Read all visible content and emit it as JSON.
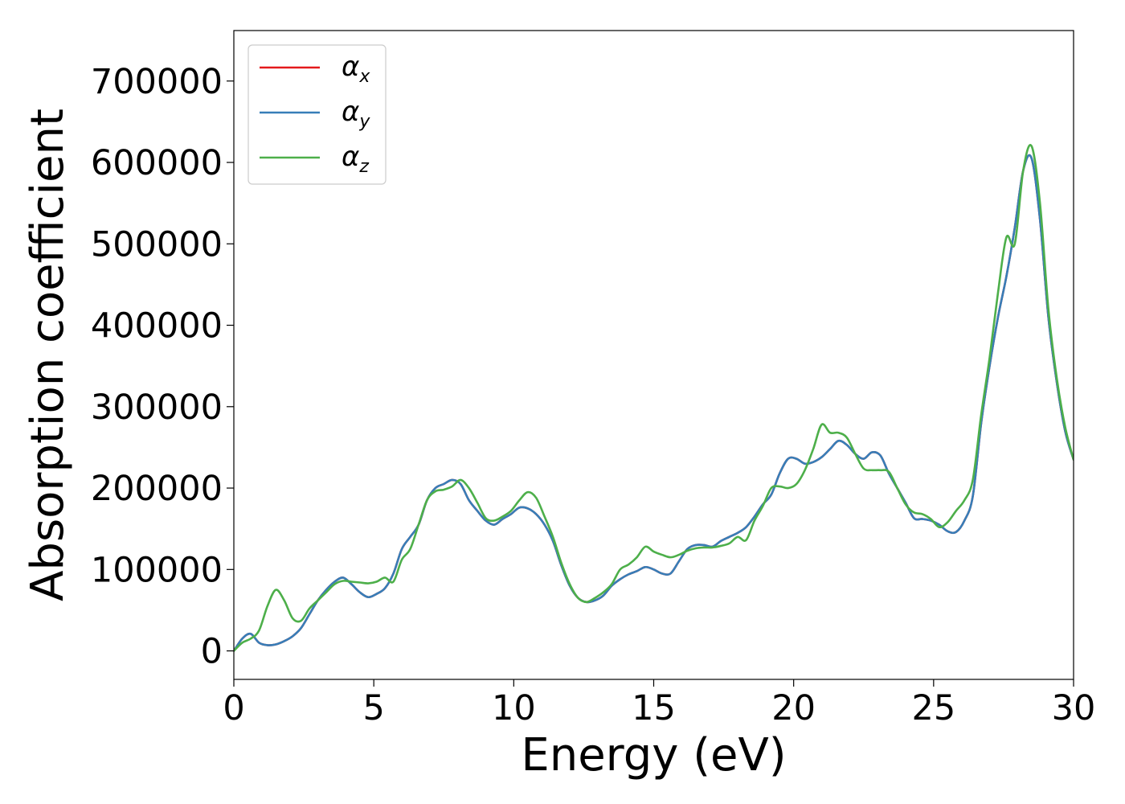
{
  "chart_data": {
    "type": "line",
    "title": "",
    "xlabel": "Energy (eV)",
    "ylabel": "Absorption coefficient",
    "xlim": [
      0,
      30
    ],
    "ylim": [
      -35000,
      762000
    ],
    "xticks": [
      0,
      5,
      10,
      15,
      20,
      25,
      30
    ],
    "xtick_labels": [
      "0",
      "5",
      "10",
      "15",
      "20",
      "25",
      "30"
    ],
    "yticks": [
      0,
      100000,
      200000,
      300000,
      400000,
      500000,
      600000,
      700000
    ],
    "ytick_labels": [
      "0",
      "100000",
      "200000",
      "300000",
      "400000",
      "500000",
      "600000",
      "700000"
    ],
    "grid": false,
    "legend_position": "top-left",
    "series": [
      {
        "name": "α",
        "sub": "x",
        "color": "#e41a1c",
        "x": [
          0,
          0.3,
          0.6,
          0.9,
          1.2,
          1.5,
          1.8,
          2.1,
          2.4,
          2.7,
          3.0,
          3.3,
          3.6,
          3.9,
          4.2,
          4.5,
          4.8,
          5.1,
          5.4,
          5.7,
          6.0,
          6.3,
          6.6,
          6.9,
          7.2,
          7.5,
          7.8,
          8.1,
          8.4,
          8.7,
          9.0,
          9.3,
          9.6,
          9.9,
          10.2,
          10.5,
          10.8,
          11.1,
          11.4,
          11.7,
          12.0,
          12.3,
          12.6,
          12.9,
          13.2,
          13.5,
          13.8,
          14.1,
          14.4,
          14.7,
          15.0,
          15.3,
          15.6,
          15.9,
          16.2,
          16.5,
          16.8,
          17.1,
          17.4,
          17.7,
          18.0,
          18.3,
          18.6,
          18.9,
          19.2,
          19.5,
          19.8,
          20.1,
          20.4,
          20.7,
          21.0,
          21.3,
          21.6,
          21.9,
          22.2,
          22.5,
          22.8,
          23.1,
          23.4,
          23.7,
          24.0,
          24.3,
          24.6,
          24.9,
          25.2,
          25.5,
          25.8,
          26.1,
          26.4,
          26.7,
          27.0,
          27.3,
          27.6,
          27.9,
          28.2,
          28.5,
          28.8,
          29.1,
          29.4,
          29.7,
          30.0
        ],
        "y": [
          0,
          15000,
          21000,
          10000,
          7000,
          8000,
          12000,
          18000,
          28000,
          45000,
          62000,
          75000,
          85000,
          90000,
          82000,
          72000,
          66000,
          70000,
          77000,
          95000,
          125000,
          140000,
          155000,
          185000,
          200000,
          205000,
          210000,
          205000,
          185000,
          172000,
          160000,
          155000,
          162000,
          168000,
          176000,
          175000,
          168000,
          155000,
          135000,
          105000,
          80000,
          65000,
          60000,
          62000,
          68000,
          80000,
          88000,
          94000,
          98000,
          103000,
          100000,
          95000,
          95000,
          110000,
          125000,
          130000,
          130000,
          128000,
          135000,
          140000,
          145000,
          152000,
          165000,
          180000,
          192000,
          218000,
          236000,
          236000,
          230000,
          232000,
          238000,
          248000,
          258000,
          253000,
          242000,
          236000,
          244000,
          240000,
          218000,
          200000,
          182000,
          163000,
          162000,
          160000,
          155000,
          147000,
          146000,
          160000,
          190000,
          280000,
          350000,
          410000,
          460000,
          520000,
          590000,
          605000,
          530000,
          410000,
          330000,
          270000,
          235000
        ]
      },
      {
        "name": "α",
        "sub": "y",
        "color": "#377eb8",
        "x": [
          0,
          0.3,
          0.6,
          0.9,
          1.2,
          1.5,
          1.8,
          2.1,
          2.4,
          2.7,
          3.0,
          3.3,
          3.6,
          3.9,
          4.2,
          4.5,
          4.8,
          5.1,
          5.4,
          5.7,
          6.0,
          6.3,
          6.6,
          6.9,
          7.2,
          7.5,
          7.8,
          8.1,
          8.4,
          8.7,
          9.0,
          9.3,
          9.6,
          9.9,
          10.2,
          10.5,
          10.8,
          11.1,
          11.4,
          11.7,
          12.0,
          12.3,
          12.6,
          12.9,
          13.2,
          13.5,
          13.8,
          14.1,
          14.4,
          14.7,
          15.0,
          15.3,
          15.6,
          15.9,
          16.2,
          16.5,
          16.8,
          17.1,
          17.4,
          17.7,
          18.0,
          18.3,
          18.6,
          18.9,
          19.2,
          19.5,
          19.8,
          20.1,
          20.4,
          20.7,
          21.0,
          21.3,
          21.6,
          21.9,
          22.2,
          22.5,
          22.8,
          23.1,
          23.4,
          23.7,
          24.0,
          24.3,
          24.6,
          24.9,
          25.2,
          25.5,
          25.8,
          26.1,
          26.4,
          26.7,
          27.0,
          27.3,
          27.6,
          27.9,
          28.2,
          28.5,
          28.8,
          29.1,
          29.4,
          29.7,
          30.0
        ],
        "y": [
          0,
          15000,
          21000,
          10000,
          7000,
          8000,
          12000,
          18000,
          28000,
          45000,
          62000,
          75000,
          85000,
          90000,
          82000,
          72000,
          66000,
          70000,
          77000,
          95000,
          125000,
          140000,
          155000,
          185000,
          200000,
          205000,
          210000,
          205000,
          185000,
          172000,
          160000,
          155000,
          162000,
          168000,
          176000,
          175000,
          168000,
          155000,
          135000,
          105000,
          80000,
          65000,
          60000,
          62000,
          68000,
          80000,
          88000,
          94000,
          98000,
          103000,
          100000,
          95000,
          95000,
          110000,
          125000,
          130000,
          130000,
          128000,
          135000,
          140000,
          145000,
          152000,
          165000,
          180000,
          192000,
          218000,
          236000,
          236000,
          230000,
          232000,
          238000,
          248000,
          258000,
          253000,
          242000,
          236000,
          244000,
          240000,
          218000,
          200000,
          182000,
          163000,
          162000,
          160000,
          155000,
          147000,
          146000,
          160000,
          190000,
          280000,
          350000,
          410000,
          460000,
          520000,
          590000,
          605000,
          530000,
          410000,
          330000,
          270000,
          235000
        ]
      },
      {
        "name": "α",
        "sub": "z",
        "color": "#4daf4a",
        "x": [
          0,
          0.3,
          0.6,
          0.9,
          1.2,
          1.5,
          1.8,
          2.1,
          2.4,
          2.7,
          3.0,
          3.3,
          3.6,
          3.9,
          4.2,
          4.5,
          4.8,
          5.1,
          5.4,
          5.7,
          6.0,
          6.3,
          6.6,
          6.9,
          7.2,
          7.5,
          7.8,
          8.1,
          8.4,
          8.7,
          9.0,
          9.3,
          9.6,
          9.9,
          10.2,
          10.5,
          10.8,
          11.1,
          11.4,
          11.7,
          12.0,
          12.3,
          12.6,
          12.9,
          13.2,
          13.5,
          13.8,
          14.1,
          14.4,
          14.7,
          15.0,
          15.3,
          15.6,
          15.9,
          16.2,
          16.5,
          16.8,
          17.1,
          17.4,
          17.7,
          18.0,
          18.3,
          18.6,
          18.9,
          19.2,
          19.5,
          19.8,
          20.1,
          20.4,
          20.7,
          21.0,
          21.3,
          21.6,
          21.9,
          22.2,
          22.5,
          22.8,
          23.1,
          23.4,
          23.7,
          24.0,
          24.3,
          24.6,
          24.9,
          25.2,
          25.5,
          25.8,
          26.1,
          26.4,
          26.7,
          27.0,
          27.3,
          27.6,
          27.9,
          28.2,
          28.5,
          28.8,
          29.1,
          29.4,
          29.7,
          30.0
        ],
        "y": [
          0,
          10000,
          15000,
          25000,
          55000,
          75000,
          62000,
          40000,
          37000,
          52000,
          62000,
          72000,
          82000,
          86000,
          85000,
          84000,
          83000,
          85000,
          90000,
          85000,
          112000,
          125000,
          155000,
          185000,
          196000,
          198000,
          202000,
          210000,
          200000,
          182000,
          163000,
          160000,
          165000,
          172000,
          185000,
          195000,
          188000,
          165000,
          140000,
          108000,
          82000,
          65000,
          60000,
          65000,
          72000,
          82000,
          100000,
          106000,
          115000,
          128000,
          122000,
          118000,
          115000,
          118000,
          123000,
          126000,
          127000,
          127000,
          129000,
          132000,
          140000,
          136000,
          160000,
          178000,
          200000,
          202000,
          200000,
          205000,
          222000,
          248000,
          278000,
          268000,
          268000,
          262000,
          242000,
          224000,
          222000,
          222000,
          220000,
          200000,
          180000,
          170000,
          168000,
          162000,
          152000,
          158000,
          172000,
          185000,
          210000,
          290000,
          360000,
          440000,
          508000,
          500000,
          590000,
          620000,
          550000,
          420000,
          335000,
          275000,
          235000
        ]
      }
    ]
  }
}
